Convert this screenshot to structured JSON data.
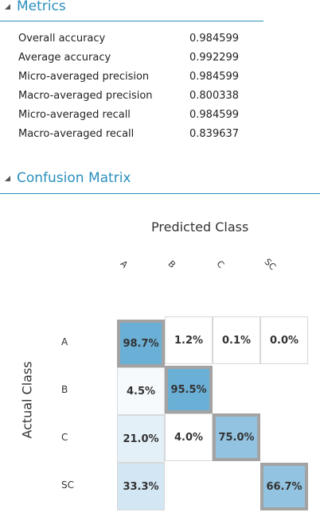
{
  "metrics": {
    "title": "Metrics",
    "rows": [
      {
        "label": "Overall accuracy",
        "value": "0.984599"
      },
      {
        "label": "Average accuracy",
        "value": "0.992299"
      },
      {
        "label": "Micro-averaged precision",
        "value": "0.984599"
      },
      {
        "label": "Macro-averaged precision",
        "value": "0.800338"
      },
      {
        "label": "Micro-averaged recall",
        "value": "0.984599"
      },
      {
        "label": "Macro-averaged recall",
        "value": "0.839637"
      }
    ]
  },
  "confusion": {
    "title": "Confusion Matrix",
    "predicted_title": "Predicted Class",
    "actual_title": "Actual Class",
    "classes": [
      "A",
      "B",
      "C",
      "SC"
    ],
    "cells": [
      [
        "98.7%",
        "1.2%",
        "0.1%",
        "0.0%"
      ],
      [
        "4.5%",
        "95.5%",
        "",
        ""
      ],
      [
        "21.0%",
        "4.0%",
        "75.0%",
        ""
      ],
      [
        "33.3%",
        "",
        "",
        "66.7%"
      ]
    ],
    "colors": {
      "diag_strong": "#6aafd6",
      "diag_mid": "#92c3e0",
      "off_light1": "#e3f0f8",
      "off_light2": "#d2e6f3",
      "off_faint": "#f7fafd",
      "empty": "#ffffff"
    }
  }
}
